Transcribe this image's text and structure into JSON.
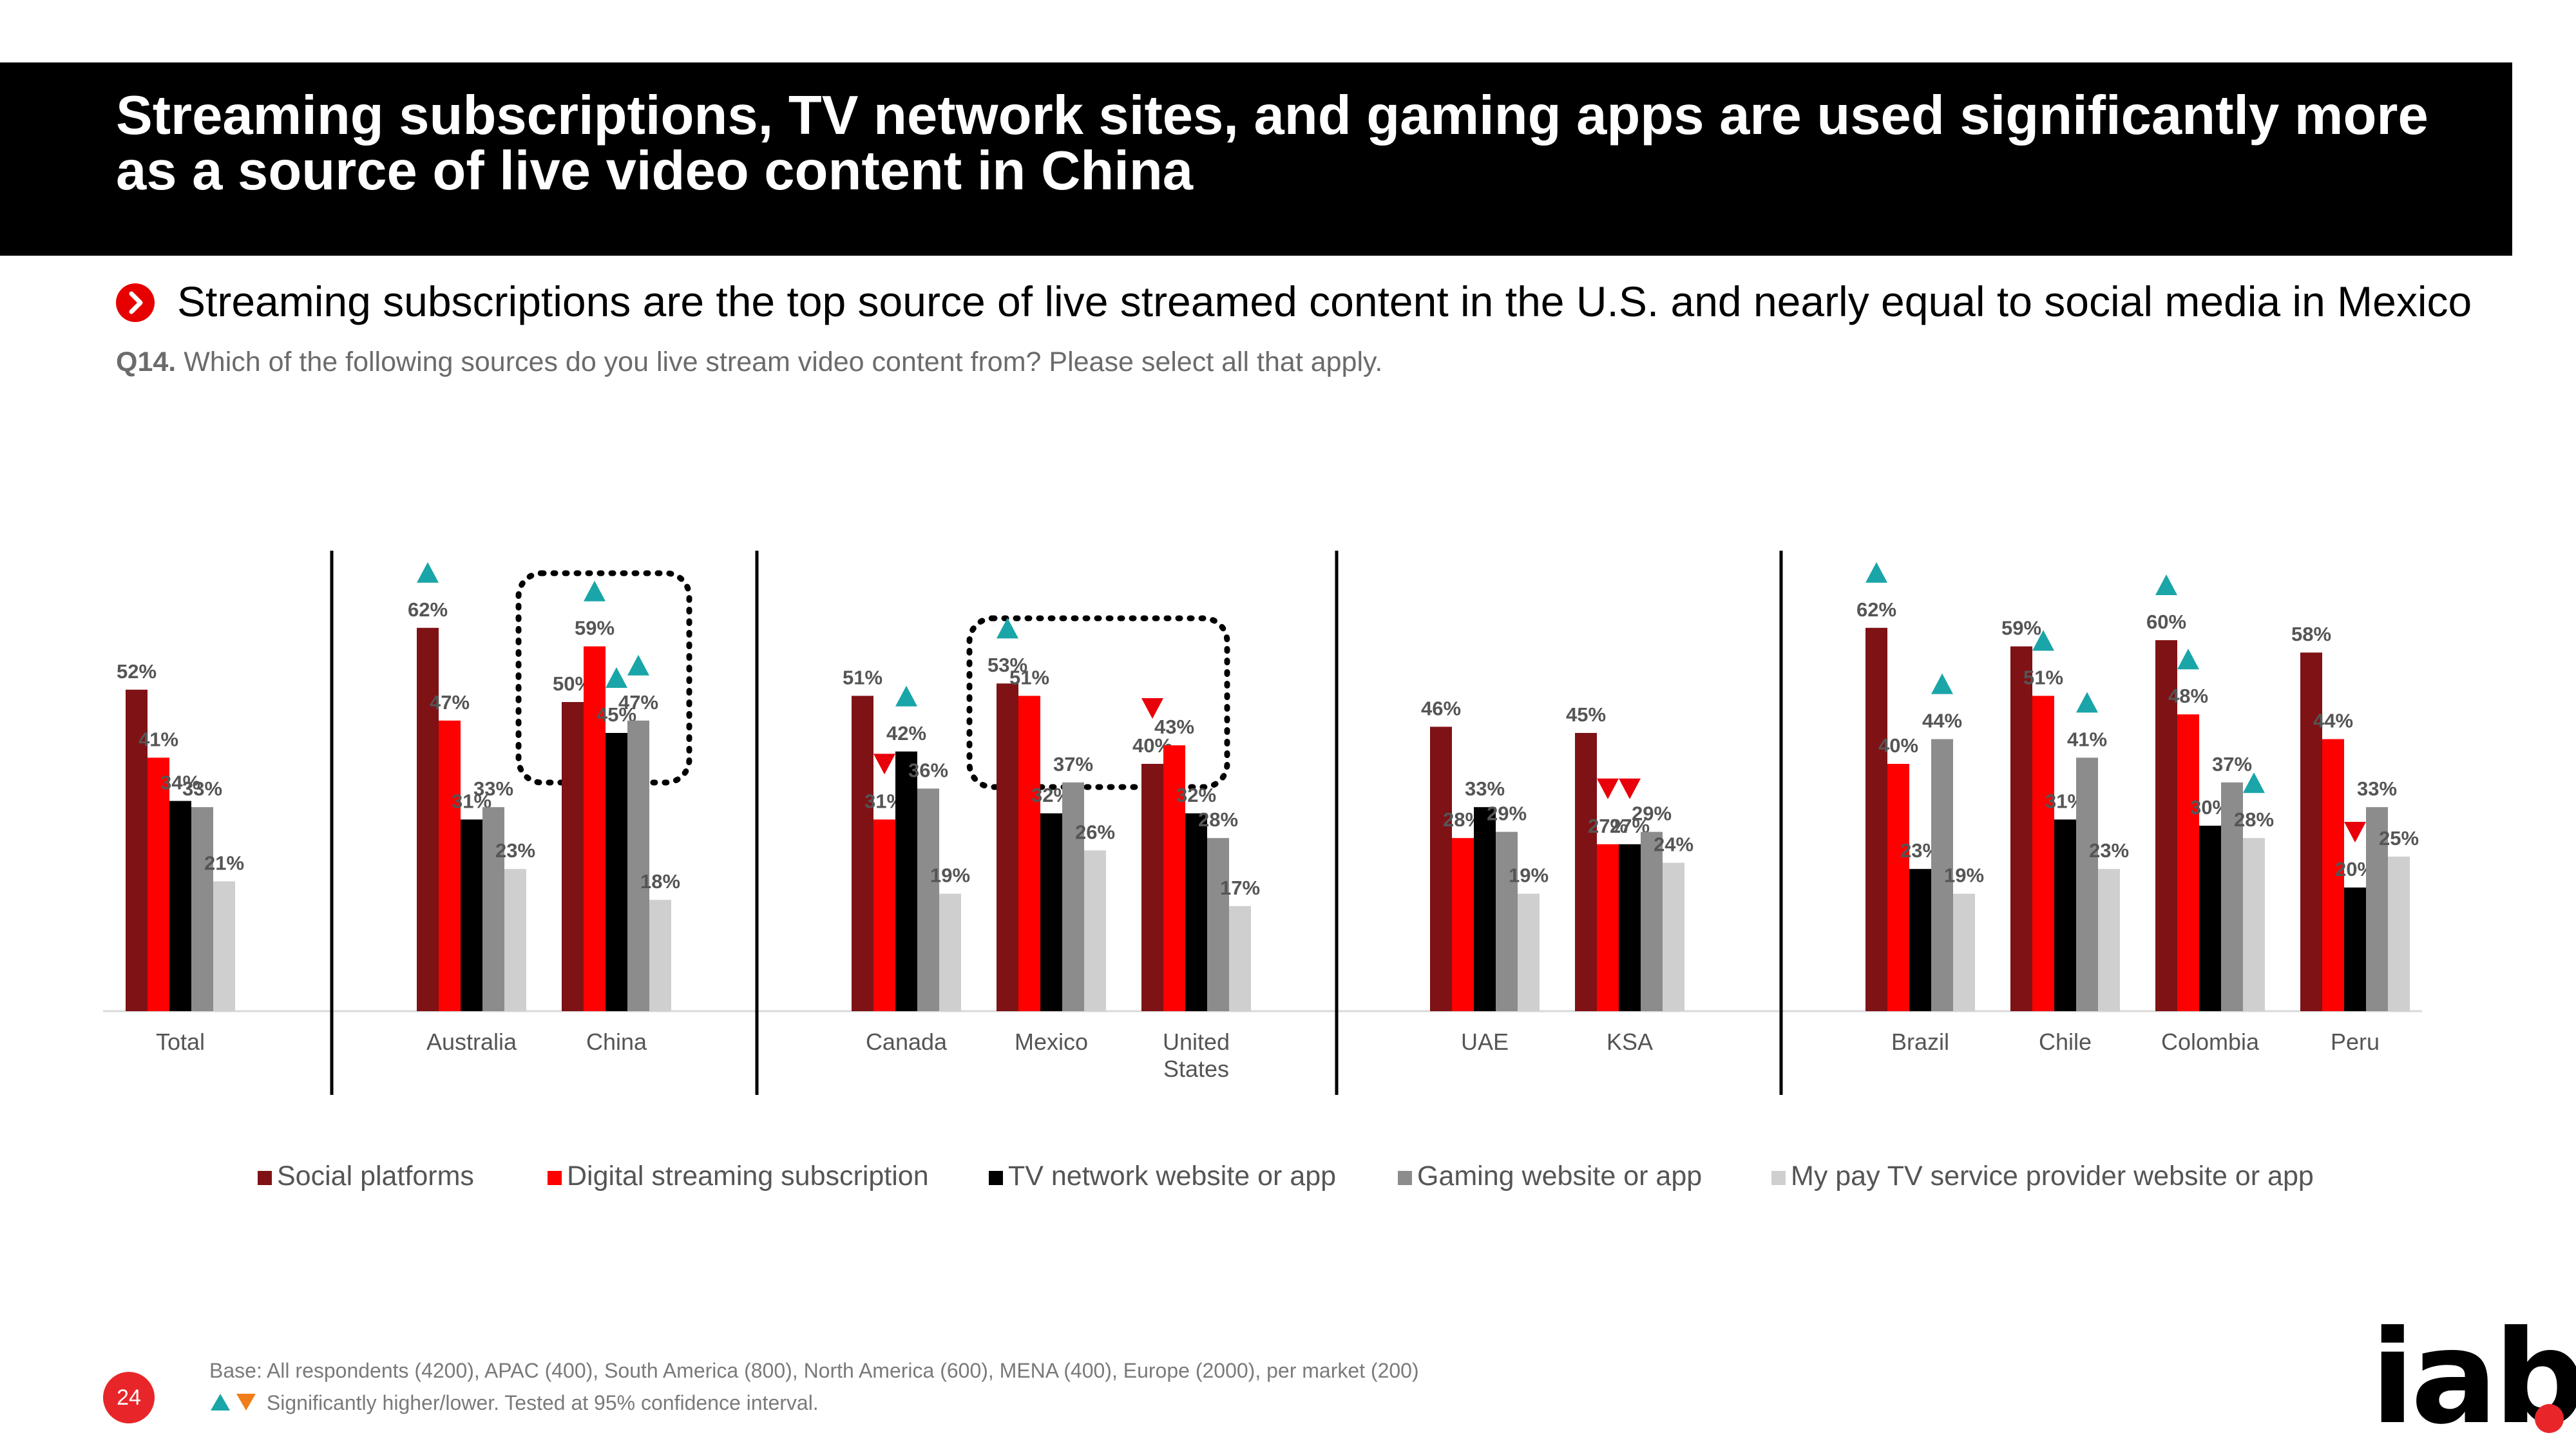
{
  "header": {
    "title": "Streaming subscriptions, TV network sites, and gaming apps are used significantly more as a source of live video content in China"
  },
  "subtitle": "Streaming subscriptions are the top source of live streamed content in the U.S. and nearly equal to social media in Mexico",
  "question": {
    "label": "Q14.",
    "text": "Which of the following sources do you live stream video content from? Please select all that apply."
  },
  "footer": {
    "base": "Base: All respondents (4200), APAC (400), South America (800), North America (600), MENA (400), Europe (2000), per market (200)",
    "significance": "Significantly higher/lower. Tested at 95% confidence interval.",
    "page_number": "24",
    "logo": "iab"
  },
  "colors": {
    "social": "#7f1215",
    "streaming": "#ff0000",
    "tv": "#000000",
    "gaming": "#8c8c8c",
    "paytv": "#cfcfcf",
    "up": "#1aa5a8",
    "down": "#e8000b"
  },
  "chart_data": {
    "type": "bar",
    "title": "",
    "xlabel": "",
    "ylabel": "",
    "ylim": [
      0,
      70
    ],
    "series": [
      {
        "name": "Social platforms",
        "color": "#7f1215",
        "values": [
          52,
          62,
          50,
          51,
          53,
          40,
          46,
          45,
          62,
          59,
          60,
          58
        ]
      },
      {
        "name": "Digital streaming subscription",
        "color": "#ff0000",
        "values": [
          41,
          47,
          59,
          31,
          51,
          43,
          28,
          27,
          40,
          51,
          48,
          44
        ]
      },
      {
        "name": "TV network website or app",
        "color": "#000000",
        "values": [
          34,
          31,
          45,
          42,
          32,
          32,
          33,
          27,
          23,
          31,
          30,
          20
        ]
      },
      {
        "name": "Gaming website or app",
        "color": "#8c8c8c",
        "values": [
          33,
          33,
          47,
          36,
          37,
          28,
          29,
          29,
          44,
          41,
          37,
          33
        ]
      },
      {
        "name": "My pay TV service provider website or app",
        "color": "#cfcfcf",
        "values": [
          21,
          23,
          18,
          19,
          26,
          17,
          19,
          24,
          19,
          23,
          28,
          25
        ]
      }
    ],
    "categories": [
      "Total",
      "Australia",
      "China",
      "Canada",
      "Mexico",
      "United States",
      "UAE",
      "KSA",
      "Brazil",
      "Chile",
      "Colombia",
      "Peru"
    ],
    "labels": {
      "Social platforms": [
        "52%",
        "62%",
        "50%",
        "51%",
        "53%",
        "40%",
        "46%",
        "45%",
        "62%",
        "59%",
        "60%",
        "58%"
      ],
      "Digital streaming subscription": [
        "41%",
        "47%",
        "59%",
        "31%",
        "51%",
        "43%",
        "28%",
        "27%",
        "40%",
        "51%",
        "48%",
        "44%"
      ],
      "TV network website or app": [
        "34%",
        "31%",
        "45%",
        "42%",
        "32%",
        "32%",
        "33%",
        "27%",
        "23%",
        "31%",
        "30%",
        "20%"
      ],
      "Gaming website or app": [
        "33%",
        "33%",
        "47%",
        "36%",
        "37%",
        "28%",
        "29%",
        "29%",
        "44%",
        "41%",
        "37%",
        "33%"
      ],
      "My pay TV service provider website or app": [
        "21%",
        "23%",
        "18%",
        "19%",
        "26%",
        "17%",
        "19%",
        "24%",
        "19%",
        "23%",
        "28%",
        "25%"
      ]
    },
    "significance": [
      {
        "category": "Australia",
        "series": "Social platforms",
        "direction": "up"
      },
      {
        "category": "China",
        "series": "Digital streaming subscription",
        "direction": "up"
      },
      {
        "category": "China",
        "series": "TV network website or app",
        "direction": "up"
      },
      {
        "category": "China",
        "series": "Gaming website or app",
        "direction": "up"
      },
      {
        "category": "Canada",
        "series": "Digital streaming subscription",
        "direction": "down"
      },
      {
        "category": "Canada",
        "series": "TV network website or app",
        "direction": "up"
      },
      {
        "category": "Mexico",
        "series": "Social platforms",
        "direction": "up"
      },
      {
        "category": "United States",
        "series": "Social platforms",
        "direction": "down"
      },
      {
        "category": "KSA",
        "series": "Digital streaming subscription",
        "direction": "down"
      },
      {
        "category": "KSA",
        "series": "TV network website or app",
        "direction": "down"
      },
      {
        "category": "Brazil",
        "series": "Social platforms",
        "direction": "up"
      },
      {
        "category": "Brazil",
        "series": "Gaming website or app",
        "direction": "up"
      },
      {
        "category": "Chile",
        "series": "Digital streaming subscription",
        "direction": "up"
      },
      {
        "category": "Chile",
        "series": "Gaming website or app",
        "direction": "up"
      },
      {
        "category": "Colombia",
        "series": "Social platforms",
        "direction": "up"
      },
      {
        "category": "Colombia",
        "series": "Digital streaming subscription",
        "direction": "up"
      },
      {
        "category": "Colombia",
        "series": "My pay TV service provider website or app",
        "direction": "up"
      },
      {
        "category": "Peru",
        "series": "TV network website or app",
        "direction": "down"
      }
    ],
    "highlighted": [
      "China",
      "Mexico"
    ],
    "legend": "bottom"
  }
}
